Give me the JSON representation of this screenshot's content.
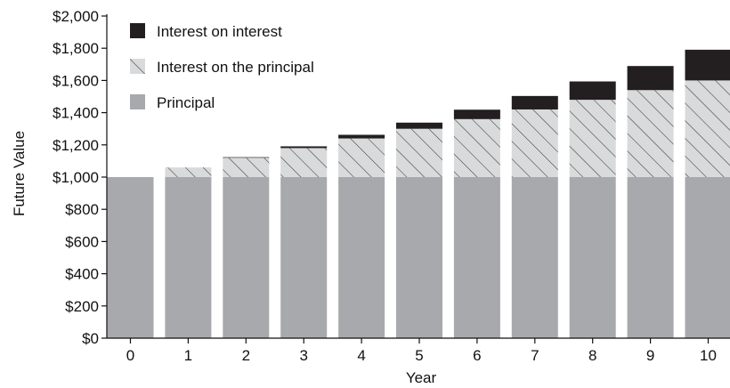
{
  "chart_data": {
    "type": "bar",
    "stacked": true,
    "title": "",
    "xlabel": "Year",
    "ylabel": "Future Value",
    "ylim": [
      0,
      2000
    ],
    "y_ticks": [
      0,
      200,
      400,
      600,
      800,
      1000,
      1200,
      1400,
      1600,
      1800,
      2000
    ],
    "y_tick_labels": [
      "$0",
      "$200",
      "$400",
      "$600",
      "$800",
      "$1,000",
      "$1,200",
      "$1,400",
      "$1,600",
      "$1,800",
      "$2,000"
    ],
    "categories": [
      "0",
      "1",
      "2",
      "3",
      "4",
      "5",
      "6",
      "7",
      "8",
      "9",
      "10"
    ],
    "series": [
      {
        "name": "Principal",
        "key": "principal",
        "color": "#a7a9ac",
        "values": [
          1000,
          1000,
          1000,
          1000,
          1000,
          1000,
          1000,
          1000,
          1000,
          1000,
          1000
        ]
      },
      {
        "name": "Interest on the principal",
        "key": "interest_principal",
        "color": "#d9dadb",
        "pattern": "diagonal-hatch",
        "values": [
          0,
          60,
          120,
          180,
          240,
          300,
          360,
          420,
          480,
          540,
          600
        ]
      },
      {
        "name": "Interest on interest",
        "key": "interest_interest",
        "color": "#231f20",
        "values": [
          0,
          0,
          3.6,
          11.0,
          22.5,
          38.2,
          58.5,
          83.6,
          113.8,
          149.5,
          190.8
        ]
      }
    ],
    "legend": {
      "position": "top-left",
      "order": [
        "Interest on interest",
        "Interest on the principal",
        "Principal"
      ]
    },
    "grid": false
  }
}
